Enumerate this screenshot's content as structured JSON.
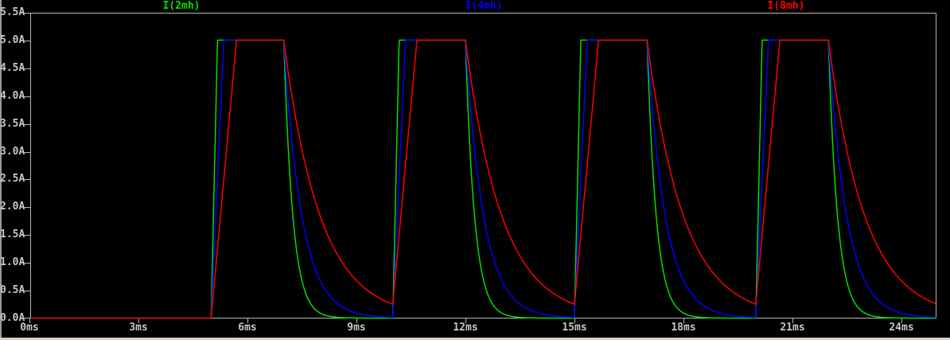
{
  "window": {
    "background_color": "#000000",
    "left_edge_color": "#9a9a9a",
    "bottom_strip_color": "#d4d0c8"
  },
  "plot": {
    "border_color": "#b8b8b8",
    "tick_color": "#b8b8b8",
    "tick_text_color": "#c8c8c8",
    "legend": [
      {
        "label": "I(2mh)",
        "color": "#00e000"
      },
      {
        "label": "I(4mh)",
        "color": "#0000ff"
      },
      {
        "label": "I(8mh)",
        "color": "#ff0000"
      }
    ],
    "y_axis": {
      "unit": "A",
      "tick_labels": [
        "5.5A",
        "5.0A",
        "4.5A",
        "4.0A",
        "3.5A",
        "3.0A",
        "2.5A",
        "2.0A",
        "1.5A",
        "1.0A",
        "0.5A",
        "0.0A"
      ]
    },
    "x_axis": {
      "unit": "ms",
      "tick_labels": [
        "0ms",
        "3ms",
        "6ms",
        "9ms",
        "12ms",
        "15ms",
        "18ms",
        "21ms",
        "24ms"
      ]
    }
  },
  "chart_data": {
    "type": "line",
    "title": "",
    "x_unit": "ms",
    "y_unit": "A",
    "x_range": [
      0,
      25
    ],
    "y_range": [
      0,
      5.5
    ],
    "x_tick_step": 3,
    "y_tick_step": 0.5,
    "grid": false,
    "legend_position": "top",
    "background": "black",
    "pulse_drive": {
      "amplitude_A": 5.0,
      "on_times_ms": [
        5,
        10,
        15,
        20
      ],
      "off_times_ms": [
        7,
        12,
        17,
        22
      ]
    },
    "series": [
      {
        "name": "I(2mh)",
        "color": "#00e000",
        "rise_time_ms": 0.175,
        "decay_tau_ms": 0.25
      },
      {
        "name": "I(4mh)",
        "color": "#0000ff",
        "rise_time_ms": 0.35,
        "decay_tau_ms": 0.5
      },
      {
        "name": "I(8mh)",
        "color": "#ff0000",
        "rise_time_ms": 0.7,
        "decay_tau_ms": 1.0
      }
    ],
    "description": "Inductor currents: each trace is 0A until 5ms; at each pulse start (5,10,15,20ms) it ramps linearly to the 5.0A clamp (rise time proportional to inductance), holds 5.0A until pulse end (7,12,17,22ms), then decays exponentially toward 0A with tau proportional to inductance. I(8mh) has decayed only to about 0.25A when the next pulse begins; I(2mh) and I(4mh) reach nearly 0A."
  }
}
